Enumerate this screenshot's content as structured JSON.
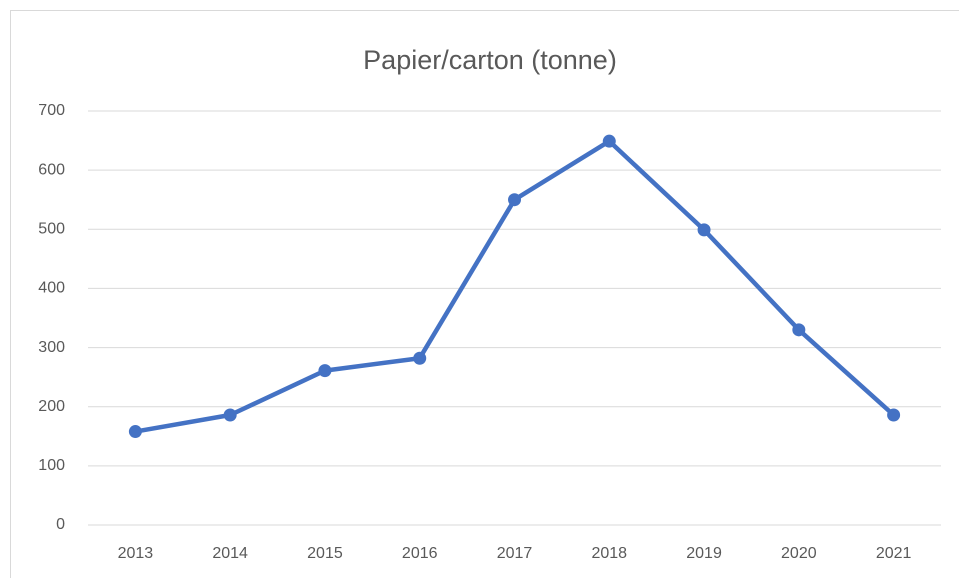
{
  "chart_data": {
    "type": "line",
    "title": "Papier/carton (tonne)",
    "categories": [
      "2013",
      "2014",
      "2015",
      "2016",
      "2017",
      "2018",
      "2019",
      "2020",
      "2021"
    ],
    "values": [
      158,
      186,
      261,
      282,
      550,
      649,
      499,
      330,
      186
    ],
    "color": "#4472c4",
    "ylim": [
      0,
      700
    ],
    "yticks": [
      0,
      100,
      200,
      300,
      400,
      500,
      600,
      700
    ],
    "grid": true
  }
}
